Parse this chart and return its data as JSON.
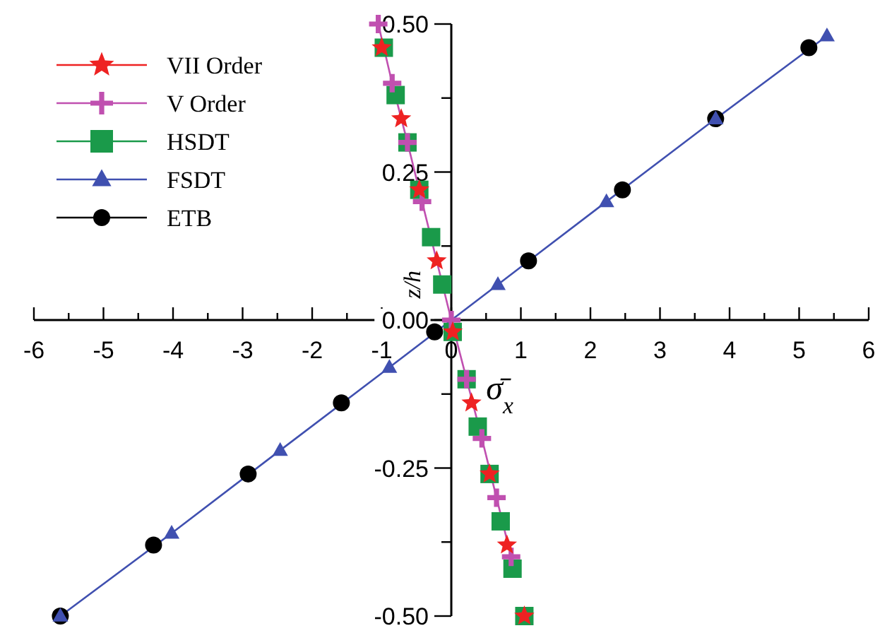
{
  "chart_data": {
    "type": "scatter",
    "xlabel": "σ̄$_{x}$",
    "ylabel": "z/h",
    "xlim": [
      -6,
      6
    ],
    "ylim": [
      -0.5,
      0.5
    ],
    "xticks": [
      -6,
      {
        "value": -5.5,
        "label": null
      },
      -5,
      {
        "value": -4.5,
        "label": null
      },
      -4,
      {
        "value": -3.5,
        "label": null
      },
      -3,
      {
        "value": -2.5,
        "label": null
      },
      -2,
      {
        "value": -1.5,
        "label": null
      },
      -1,
      {
        "value": -0.5,
        "label": null
      },
      0,
      {
        "value": 0.5,
        "label": null
      },
      1,
      {
        "value": 1.5,
        "label": null
      },
      2,
      {
        "value": 2.5,
        "label": null
      },
      3,
      {
        "value": 3.5,
        "label": null
      },
      4,
      {
        "value": 4.5,
        "label": null
      },
      5,
      {
        "value": 5.5,
        "label": null
      },
      6
    ],
    "yticks": [
      {
        "value": -0.5,
        "label": "-0.50"
      },
      {
        "value": -0.375,
        "label": null
      },
      {
        "value": -0.25,
        "label": "-0.25"
      },
      {
        "value": -0.125,
        "label": null
      },
      {
        "value": 0,
        "label": "0.00"
      },
      {
        "value": 0.125,
        "label": null
      },
      {
        "value": 0.25,
        "label": "0.25"
      },
      {
        "value": 0.375,
        "label": null
      },
      {
        "value": 0.5,
        "label": "0.50"
      }
    ],
    "grid": false,
    "legend": "top left",
    "series": [
      {
        "name": "VII Order",
        "color": "#ee2222",
        "marker": "star",
        "x": [
          -1.0,
          -0.72,
          -0.46,
          -0.21,
          0.02,
          0.29,
          0.55,
          0.8,
          1.05
        ],
        "values": [
          0.46,
          0.34,
          0.22,
          0.1,
          -0.02,
          -0.14,
          -0.26,
          -0.38,
          -0.5
        ]
      },
      {
        "name": "V Order",
        "color": "#c050b0",
        "type": "line",
        "marker": "cross",
        "line_style": "solid",
        "x": [
          -1.05,
          -0.85,
          -0.63,
          -0.42,
          0,
          0.22,
          0.44,
          0.65,
          0.86
        ],
        "values": [
          0.5,
          0.4,
          0.3,
          0.2,
          0,
          -0.1,
          -0.2,
          -0.3,
          -0.4
        ]
      },
      {
        "name": "HSDT",
        "color": "#1a9a4a",
        "marker": "square",
        "x": [
          -0.97,
          -0.8,
          -0.63,
          -0.46,
          -0.29,
          -0.13,
          0.02,
          0.22,
          0.38,
          0.55,
          0.71,
          0.88,
          1.05
        ],
        "values": [
          0.46,
          0.38,
          0.3,
          0.22,
          0.14,
          0.06,
          -0.02,
          -0.1,
          -0.18,
          -0.26,
          -0.34,
          -0.42,
          -0.5
        ]
      },
      {
        "name": "FSDT",
        "color": "#4050b0",
        "type": "line",
        "marker": "triangle",
        "line_style": "solid",
        "x": [
          5.4,
          3.8,
          2.23,
          0.67,
          -0.89,
          -2.46,
          -4.02,
          -5.62
        ],
        "values": [
          0.48,
          0.34,
          0.2,
          0.06,
          -0.08,
          -0.22,
          -0.36,
          -0.5
        ]
      },
      {
        "name": "ETB",
        "color": "#000000",
        "marker": "circle",
        "x": [
          5.14,
          3.8,
          2.46,
          1.11,
          -0.24,
          -1.58,
          -2.92,
          -4.28,
          -5.62
        ],
        "values": [
          0.46,
          0.34,
          0.22,
          0.1,
          -0.02,
          -0.14,
          -0.26,
          -0.38,
          -0.5
        ]
      }
    ]
  }
}
